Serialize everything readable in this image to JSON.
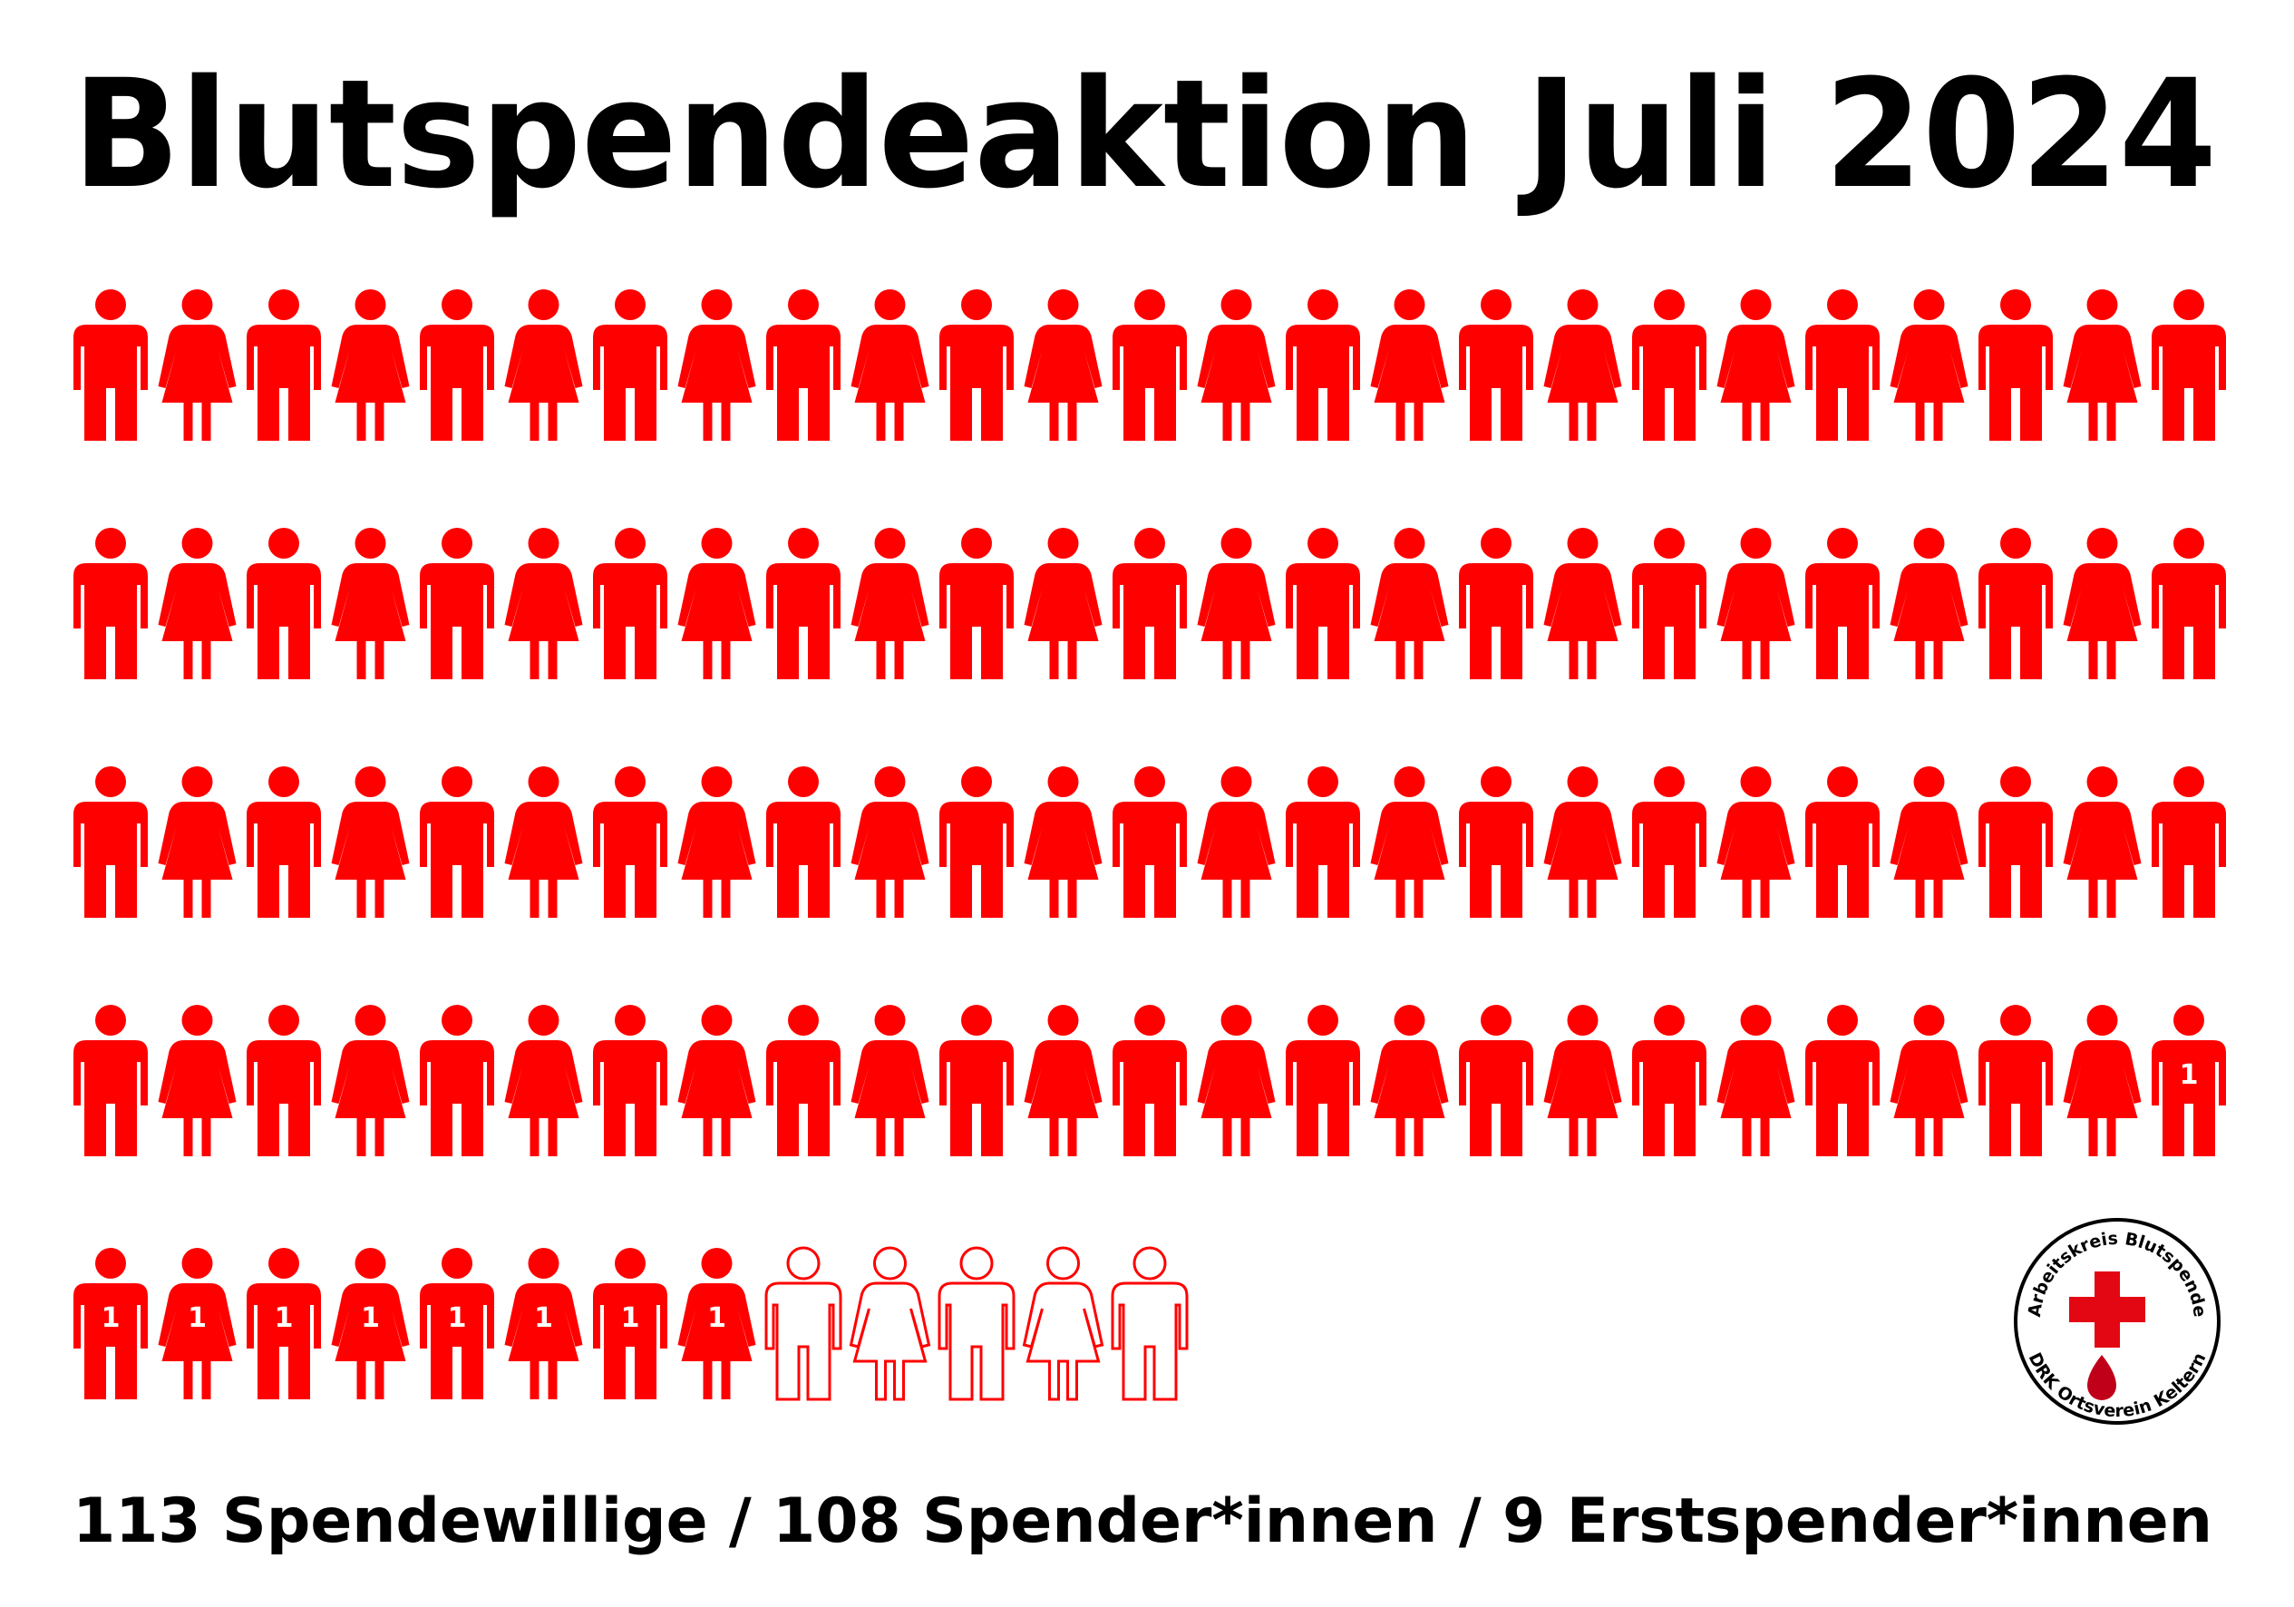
{
  "chart_data": {
    "type": "pictogram",
    "title": "Blutspendeaktion Juli 2024",
    "series": [
      {
        "name": "Spendewillige",
        "value": 113,
        "label": "113 Spendewillige"
      },
      {
        "name": "Spender*innen",
        "value": 108,
        "label": "108 Spender*innen"
      },
      {
        "name": "Erstspender*innen",
        "value": 9,
        "label": "9 Erstspender*innen"
      }
    ],
    "separator": "/",
    "marker": "1",
    "color": "#ff0000",
    "logo": {
      "top": "Arbeitskreis Blutspende",
      "bottom": "DRK Ortsverein Keltern"
    }
  }
}
